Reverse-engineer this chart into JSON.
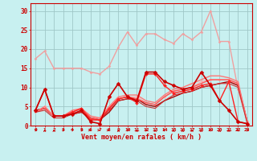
{
  "bg_color": "#c8f0f0",
  "grid_color": "#a0c8c8",
  "xlabel": "Vent moyen/en rafales ( km/h )",
  "x_ticks": [
    0,
    1,
    2,
    3,
    4,
    5,
    6,
    7,
    8,
    9,
    10,
    11,
    12,
    13,
    14,
    15,
    16,
    17,
    18,
    19,
    20,
    21,
    22,
    23
  ],
  "ylim": [
    0,
    32
  ],
  "yticks": [
    0,
    5,
    10,
    15,
    20,
    25,
    30
  ],
  "series": [
    {
      "y": [
        17.5,
        19.5,
        15.0,
        15.0,
        15.0,
        15.0,
        14.0,
        13.5,
        15.5,
        20.5,
        24.5,
        21.0,
        24.0,
        24.0,
        22.5,
        21.5,
        24.0,
        22.5,
        24.5,
        30.0,
        22.0,
        22.0,
        9.5,
        1.0
      ],
      "color": "#f0a0a0",
      "lw": 1.0,
      "marker": "D",
      "ms": 1.5,
      "zorder": 2
    },
    {
      "y": [
        4.0,
        9.5,
        2.5,
        2.5,
        3.0,
        4.0,
        1.0,
        0.5,
        7.5,
        11.0,
        7.5,
        6.5,
        14.0,
        14.0,
        11.5,
        10.5,
        9.5,
        10.0,
        14.0,
        10.5,
        6.5,
        4.0,
        1.0,
        0.5
      ],
      "color": "#cc0000",
      "lw": 1.2,
      "marker": "D",
      "ms": 2.5,
      "zorder": 5
    },
    {
      "y": [
        4.0,
        4.5,
        2.5,
        2.5,
        3.0,
        3.5,
        2.0,
        1.5,
        3.5,
        6.5,
        7.0,
        7.0,
        5.5,
        5.0,
        6.5,
        7.5,
        8.5,
        9.0,
        10.0,
        10.5,
        11.0,
        11.5,
        10.5,
        1.0
      ],
      "color": "#aa0000",
      "lw": 1.0,
      "marker": null,
      "ms": 0,
      "zorder": 3
    },
    {
      "y": [
        3.5,
        4.5,
        2.5,
        2.5,
        3.5,
        4.5,
        2.0,
        1.5,
        4.5,
        7.0,
        7.5,
        7.0,
        6.0,
        5.5,
        7.5,
        9.0,
        9.5,
        10.0,
        11.0,
        12.0,
        12.0,
        12.0,
        11.0,
        1.0
      ],
      "color": "#ff5555",
      "lw": 1.0,
      "marker": null,
      "ms": 0,
      "zorder": 3
    },
    {
      "y": [
        3.5,
        5.0,
        2.5,
        2.5,
        4.0,
        4.5,
        2.5,
        2.0,
        5.0,
        7.5,
        8.0,
        8.0,
        6.5,
        6.0,
        8.0,
        9.5,
        10.0,
        11.0,
        12.0,
        13.0,
        13.0,
        12.5,
        11.5,
        1.0
      ],
      "color": "#ff7777",
      "lw": 1.0,
      "marker": null,
      "ms": 0,
      "zorder": 3
    },
    {
      "y": [
        3.5,
        4.0,
        2.0,
        2.0,
        3.0,
        3.5,
        1.5,
        1.5,
        4.0,
        6.5,
        7.0,
        6.5,
        5.0,
        4.5,
        6.5,
        8.0,
        8.5,
        9.0,
        10.0,
        10.5,
        11.0,
        11.0,
        10.0,
        0.5
      ],
      "color": "#cc3333",
      "lw": 0.8,
      "marker": null,
      "ms": 0,
      "zorder": 3
    },
    {
      "y": [
        3.5,
        5.0,
        2.5,
        2.5,
        3.5,
        4.5,
        2.0,
        2.0,
        4.5,
        7.0,
        7.5,
        7.5,
        6.0,
        5.5,
        7.5,
        9.0,
        9.5,
        10.0,
        11.5,
        12.0,
        12.0,
        12.0,
        10.5,
        1.0
      ],
      "color": "#ffaaaa",
      "lw": 0.8,
      "marker": "D",
      "ms": 1.5,
      "zorder": 2
    },
    {
      "y": [
        4.0,
        9.5,
        2.5,
        2.5,
        3.5,
        4.5,
        1.5,
        1.5,
        4.5,
        7.0,
        7.5,
        6.0,
        13.5,
        13.5,
        10.5,
        8.5,
        9.0,
        9.5,
        10.5,
        11.0,
        6.5,
        11.5,
        1.0,
        0.5
      ],
      "color": "#ff2222",
      "lw": 1.0,
      "marker": "D",
      "ms": 2.0,
      "zorder": 4
    }
  ],
  "arrows": {
    "angles": [
      45,
      0,
      0,
      45,
      45,
      45,
      90,
      90,
      90,
      0,
      45,
      0,
      45,
      0,
      315,
      0,
      0,
      0,
      0,
      315,
      0,
      0,
      315,
      45
    ]
  },
  "axis_color": "#cc0000",
  "tick_color": "#cc0000",
  "label_color": "#cc0000"
}
